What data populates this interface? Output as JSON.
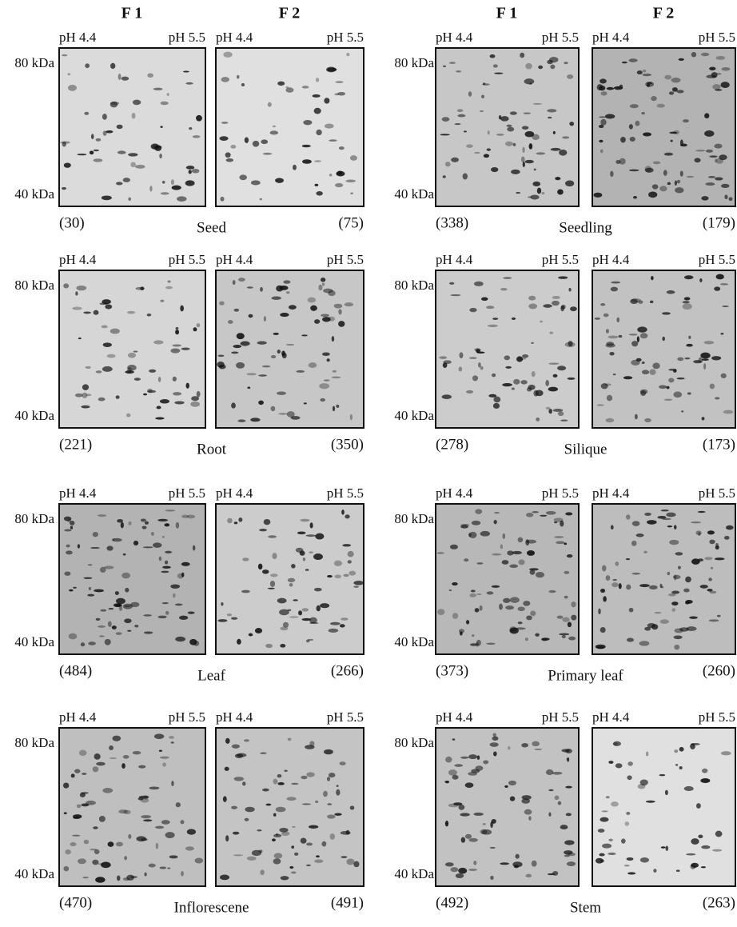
{
  "column_headers": [
    "F 1",
    "F 2",
    "F 1",
    "F 2"
  ],
  "ph_low": "pH 4.4",
  "ph_high": "pH 5.5",
  "mass_high": "80 kDa",
  "mass_low": "40 kDa",
  "panels": [
    {
      "tissue": "Seed",
      "f1_count": "(30)",
      "f2_count": "(75)"
    },
    {
      "tissue": "Seedling",
      "f1_count": "(338)",
      "f2_count": "(179)"
    },
    {
      "tissue": "Root",
      "f1_count": "(221)",
      "f2_count": "(350)"
    },
    {
      "tissue": "Silique",
      "f1_count": "(278)",
      "f2_count": "(173)"
    },
    {
      "tissue": "Leaf",
      "f1_count": "(484)",
      "f2_count": "(266)"
    },
    {
      "tissue": "Primary leaf",
      "f1_count": "(373)",
      "f2_count": "(260)"
    },
    {
      "tissue": "Inflorescene",
      "f1_count": "(470)",
      "f2_count": "(491)"
    },
    {
      "tissue": "Stem",
      "f1_count": "(492)",
      "f2_count": "(263)"
    }
  ]
}
